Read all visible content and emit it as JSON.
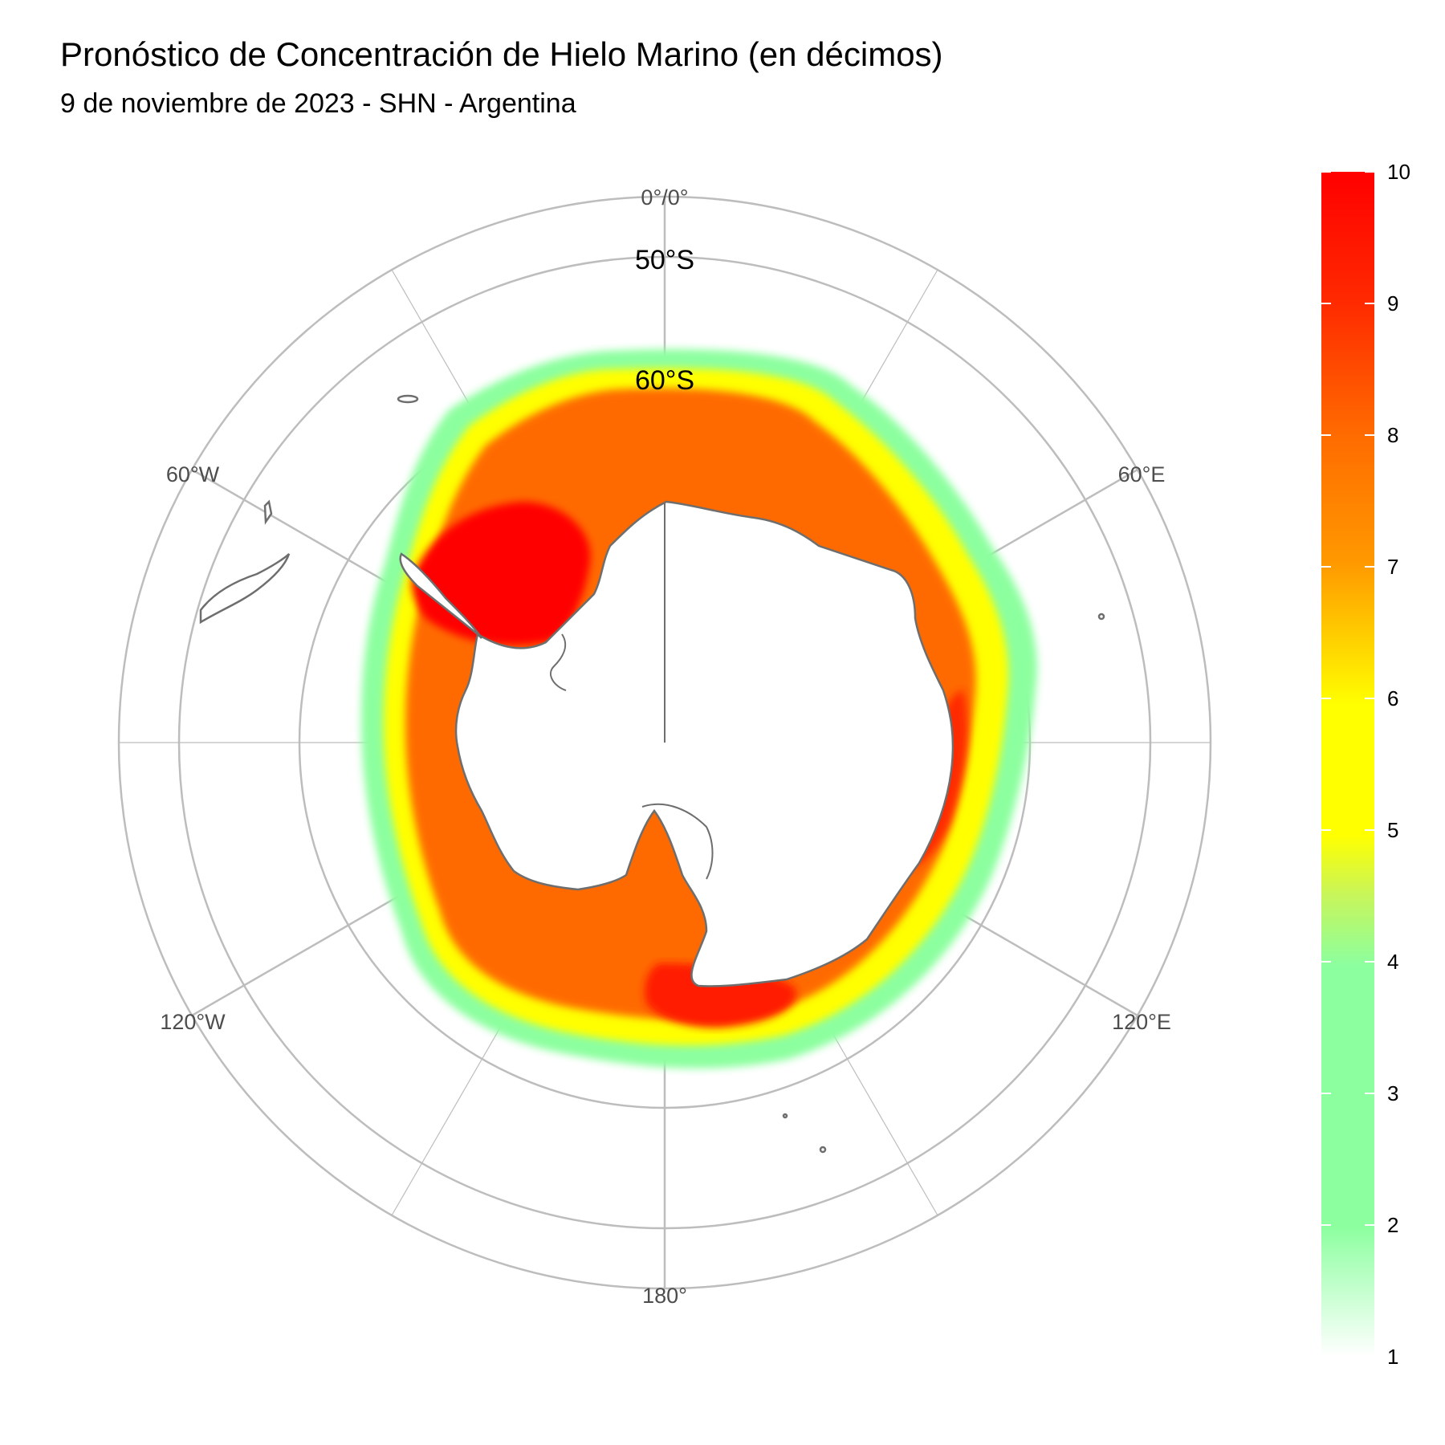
{
  "header": {
    "title": "Pronóstico de Concentración de Hielo Marino (en décimos)",
    "subtitle": "9 de noviembre de 2023 - SHN - Argentina"
  },
  "map": {
    "projection": "south-polar-stereographic",
    "center": "South Pole",
    "longitude_labels": {
      "top": "0°/0°",
      "upper_left": "60°W",
      "upper_right": "60°E",
      "lower_left": "120°W",
      "lower_right": "120°E",
      "bottom": "180°"
    },
    "latitude_labels": [
      "50°S",
      "60°S"
    ],
    "coastline_color": "#6e6e6e",
    "graticule_color": "#bdbdbd"
  },
  "legend": {
    "title": "",
    "min": 1,
    "max": 10,
    "ticks": [
      "10",
      "9",
      "8",
      "7",
      "6",
      "5",
      "4",
      "3",
      "2",
      "1"
    ],
    "colors": [
      {
        "value": 1,
        "color": "#ffffff"
      },
      {
        "value": 2,
        "color": "#8cff9f"
      },
      {
        "value": 3,
        "color": "#8cff9f"
      },
      {
        "value": 4,
        "color": "#9bff8c"
      },
      {
        "value": 4.5,
        "color": "#d4f53c"
      },
      {
        "value": 5,
        "color": "#ffff00"
      },
      {
        "value": 6,
        "color": "#ffff00"
      },
      {
        "value": 7,
        "color": "#ff9900"
      },
      {
        "value": 8,
        "color": "#ff6a00"
      },
      {
        "value": 9,
        "color": "#ff2a00"
      },
      {
        "value": 10,
        "color": "#ff0000"
      }
    ]
  }
}
